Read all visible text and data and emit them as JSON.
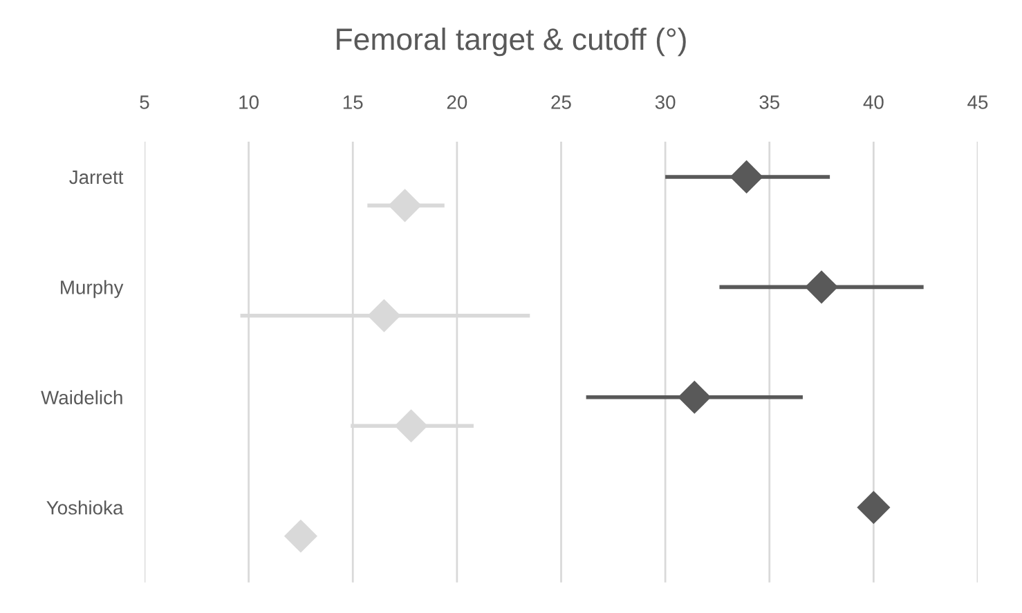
{
  "chart_data": {
    "type": "scatter",
    "title": "Femoral target & cutoff (°)",
    "orientation": "horizontal",
    "categories": [
      "Jarrett",
      "Murphy",
      "Waidelich",
      "Yoshioka"
    ],
    "series": [
      {
        "color": "#595959",
        "values": [
          33.9,
          37.5,
          31.4,
          40.0
        ],
        "errors": [
          [
            30.0,
            37.9
          ],
          [
            32.6,
            42.4
          ],
          [
            26.2,
            36.6
          ],
          null
        ]
      },
      {
        "color": "#d9d9d9",
        "values": [
          17.5,
          16.5,
          17.8,
          12.5
        ],
        "errors": [
          [
            15.7,
            19.4
          ],
          [
            9.6,
            23.5
          ],
          [
            14.9,
            20.8
          ],
          null
        ]
      }
    ],
    "xlim": [
      5,
      45
    ],
    "xticks": [
      5,
      10,
      15,
      20,
      25,
      30,
      35,
      40,
      45
    ],
    "grid": "x",
    "marker": "diamond",
    "legend": false
  }
}
